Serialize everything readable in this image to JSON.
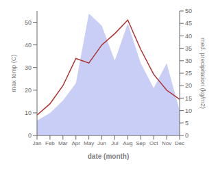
{
  "chart_data": {
    "type": "line",
    "categories": [
      "Jan",
      "Feb",
      "Mar",
      "Apr",
      "May",
      "Jun",
      "Jul",
      "Aug",
      "Sep",
      "Oct",
      "Nov",
      "Dec"
    ],
    "series": [
      {
        "type": "area",
        "axis": "y2",
        "color": "#c8cef5",
        "values": [
          6,
          9,
          14,
          21,
          49,
          44,
          30,
          45,
          29,
          19,
          29,
          10
        ]
      },
      {
        "type": "line",
        "color": "#b03030",
        "values": [
          9,
          14,
          22,
          34,
          32,
          40,
          45,
          51,
          38,
          27,
          20,
          16
        ]
      }
    ],
    "ylim": [
      0,
      55
    ],
    "yticks": [
      0,
      10,
      20,
      30,
      40,
      50
    ],
    "y2lim": [
      0,
      50
    ],
    "y2ticks": [
      0,
      5,
      10,
      15,
      20,
      25,
      30,
      35,
      40,
      45,
      50
    ],
    "ylabel": "max temp (C)",
    "y2label": "med. precipitation (kg/m2)",
    "xlabel": "date (month)",
    "grid": false
  }
}
